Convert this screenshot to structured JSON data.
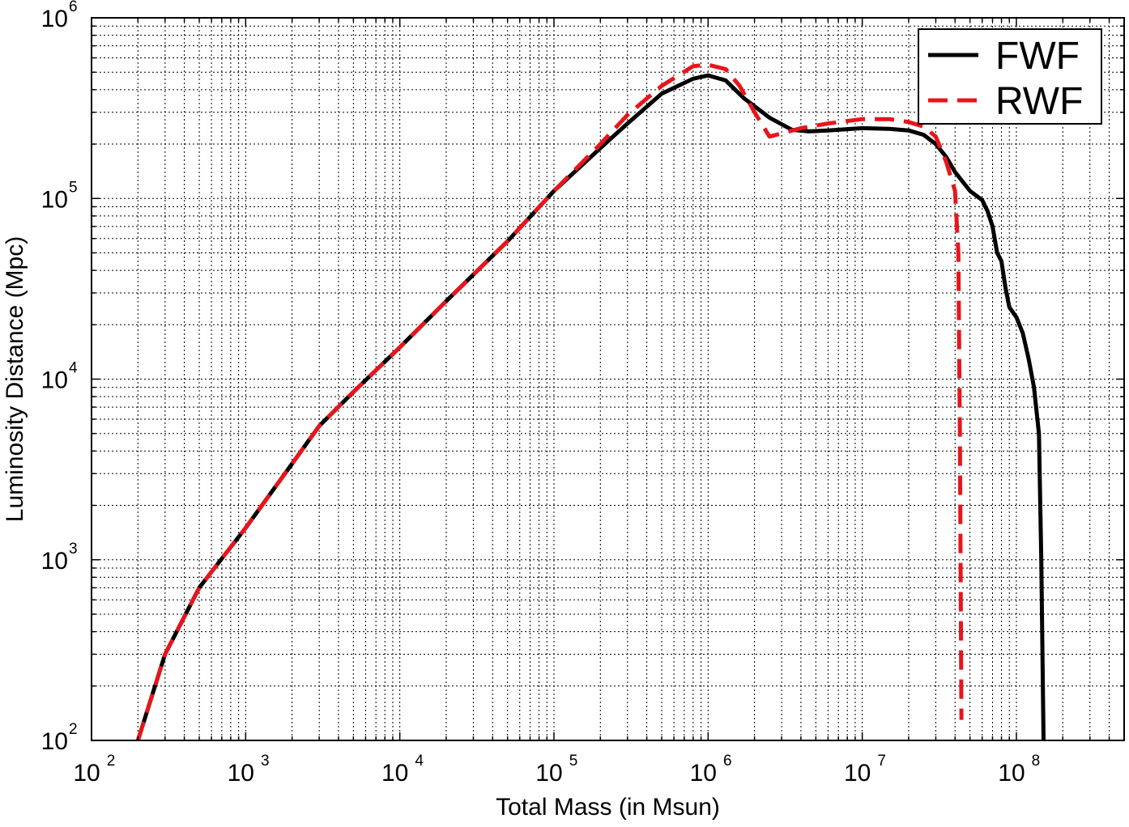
{
  "chart_data": {
    "type": "line",
    "title": "",
    "xlabel": "Total Mass (in Msun)",
    "ylabel": "Luminosity Distance (Mpc)",
    "x_scale": "log",
    "y_scale": "log",
    "xlim": [
      100,
      500000000
    ],
    "ylim": [
      100,
      1000000
    ],
    "grid": true,
    "legend_position": "top-right",
    "x_ticks": [
      {
        "base": "10",
        "exp": "2",
        "value": 100
      },
      {
        "base": "10",
        "exp": "3",
        "value": 1000
      },
      {
        "base": "10",
        "exp": "4",
        "value": 10000
      },
      {
        "base": "10",
        "exp": "5",
        "value": 100000
      },
      {
        "base": "10",
        "exp": "6",
        "value": 1000000
      },
      {
        "base": "10",
        "exp": "7",
        "value": 10000000
      },
      {
        "base": "10",
        "exp": "8",
        "value": 100000000
      }
    ],
    "y_ticks": [
      {
        "base": "10",
        "exp": "2",
        "value": 100
      },
      {
        "base": "10",
        "exp": "3",
        "value": 1000
      },
      {
        "base": "10",
        "exp": "4",
        "value": 10000
      },
      {
        "base": "10",
        "exp": "5",
        "value": 100000
      },
      {
        "base": "10",
        "exp": "6",
        "value": 1000000
      }
    ],
    "series": [
      {
        "name": "FWF",
        "color": "#000000",
        "style": "solid",
        "points": [
          [
            200,
            100
          ],
          [
            300,
            300
          ],
          [
            500,
            700
          ],
          [
            1000,
            1500
          ],
          [
            2000,
            3400
          ],
          [
            3000,
            5500
          ],
          [
            5000,
            8500
          ],
          [
            10000,
            15000
          ],
          [
            20000,
            27000
          ],
          [
            50000,
            58000
          ],
          [
            100000,
            110000
          ],
          [
            200000,
            190000
          ],
          [
            300000,
            260000
          ],
          [
            500000,
            380000
          ],
          [
            800000,
            460000
          ],
          [
            1000000,
            480000
          ],
          [
            1300000,
            450000
          ],
          [
            1700000,
            360000
          ],
          [
            2500000,
            280000
          ],
          [
            3500000,
            240000
          ],
          [
            4500000,
            235000
          ],
          [
            6000000,
            238000
          ],
          [
            10000000,
            245000
          ],
          [
            15000000,
            243000
          ],
          [
            20000000,
            238000
          ],
          [
            25000000,
            225000
          ],
          [
            30000000,
            200000
          ],
          [
            35000000,
            170000
          ],
          [
            40000000,
            140000
          ],
          [
            50000000,
            110000
          ],
          [
            60000000,
            98000
          ],
          [
            65000000,
            85000
          ],
          [
            70000000,
            70000
          ],
          [
            75000000,
            50000
          ],
          [
            80000000,
            45000
          ],
          [
            85000000,
            32000
          ],
          [
            90000000,
            25000
          ],
          [
            100000000,
            22000
          ],
          [
            110000000,
            18000
          ],
          [
            120000000,
            13000
          ],
          [
            130000000,
            9000
          ],
          [
            140000000,
            5000
          ],
          [
            145000000,
            1000
          ],
          [
            150000000,
            100
          ]
        ]
      },
      {
        "name": "RWF",
        "color": "#e8151b",
        "style": "dashed",
        "points": [
          [
            200,
            100
          ],
          [
            300,
            300
          ],
          [
            500,
            700
          ],
          [
            1000,
            1500
          ],
          [
            2000,
            3400
          ],
          [
            3000,
            5500
          ],
          [
            5000,
            8500
          ],
          [
            10000,
            15000
          ],
          [
            20000,
            27000
          ],
          [
            50000,
            58000
          ],
          [
            100000,
            110000
          ],
          [
            200000,
            200000
          ],
          [
            300000,
            290000
          ],
          [
            500000,
            420000
          ],
          [
            800000,
            540000
          ],
          [
            1000000,
            550000
          ],
          [
            1300000,
            520000
          ],
          [
            1600000,
            420000
          ],
          [
            2000000,
            300000
          ],
          [
            2500000,
            220000
          ],
          [
            4000000,
            245000
          ],
          [
            6000000,
            260000
          ],
          [
            10000000,
            275000
          ],
          [
            15000000,
            275000
          ],
          [
            20000000,
            265000
          ],
          [
            25000000,
            250000
          ],
          [
            30000000,
            220000
          ],
          [
            35000000,
            160000
          ],
          [
            40000000,
            110000
          ],
          [
            42000000,
            50000
          ],
          [
            43000000,
            5000
          ],
          [
            44000000,
            130
          ]
        ]
      }
    ]
  }
}
